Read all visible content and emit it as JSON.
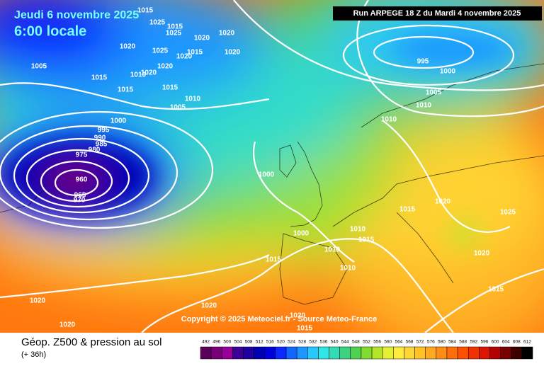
{
  "header": {
    "valid_date": "Jeudi 6 novembre 2025",
    "valid_time": "6:00 locale",
    "run": "Run ARPEGE 18 Z du Mardi 4 novembre 2025"
  },
  "copyright": "Copyright © 2025 Meteociel.fr - Source Meteo-France",
  "footer": {
    "title": "Géop. Z500 & pression au sol",
    "subtitle": "(+ 36h)"
  },
  "isobar_labels": [
    1015,
    1025,
    1015,
    1025,
    1020,
    1020,
    1020,
    1025,
    1015,
    1020,
    1020,
    1005,
    1015,
    1010,
    1020,
    1020,
    1015,
    1015,
    1010,
    1005,
    1000,
    995,
    990,
    985,
    980,
    975,
    960,
    965,
    970,
    995,
    1000,
    1005,
    1010,
    1010,
    1000,
    1000,
    1010,
    1010,
    1015,
    1010,
    1015,
    1015,
    1020,
    1025,
    1020,
    1015,
    1020,
    1020,
    1020,
    1015,
    1020
  ],
  "color_scale": {
    "values": [
      492,
      496,
      500,
      504,
      508,
      512,
      516,
      520,
      524,
      528,
      532,
      536,
      540,
      544,
      548,
      552,
      556,
      560,
      564,
      568,
      572,
      576,
      580,
      584,
      588,
      592,
      596,
      600,
      604,
      608,
      612
    ],
    "colors": [
      "#5a005a",
      "#780078",
      "#960096",
      "#3c0096",
      "#1e00a0",
      "#0000b4",
      "#0000dc",
      "#0a28ff",
      "#1464ff",
      "#1e96ff",
      "#28c8ff",
      "#32e6e6",
      "#32dcb4",
      "#3cd282",
      "#50d250",
      "#82dc32",
      "#b4e628",
      "#e6f032",
      "#ffeb3c",
      "#ffd732",
      "#ffc328",
      "#ffaa1e",
      "#ff8c14",
      "#ff6e0a",
      "#ff5000",
      "#f03200",
      "#dc1400",
      "#b40000",
      "#780000",
      "#3c0000",
      "#000000"
    ]
  }
}
